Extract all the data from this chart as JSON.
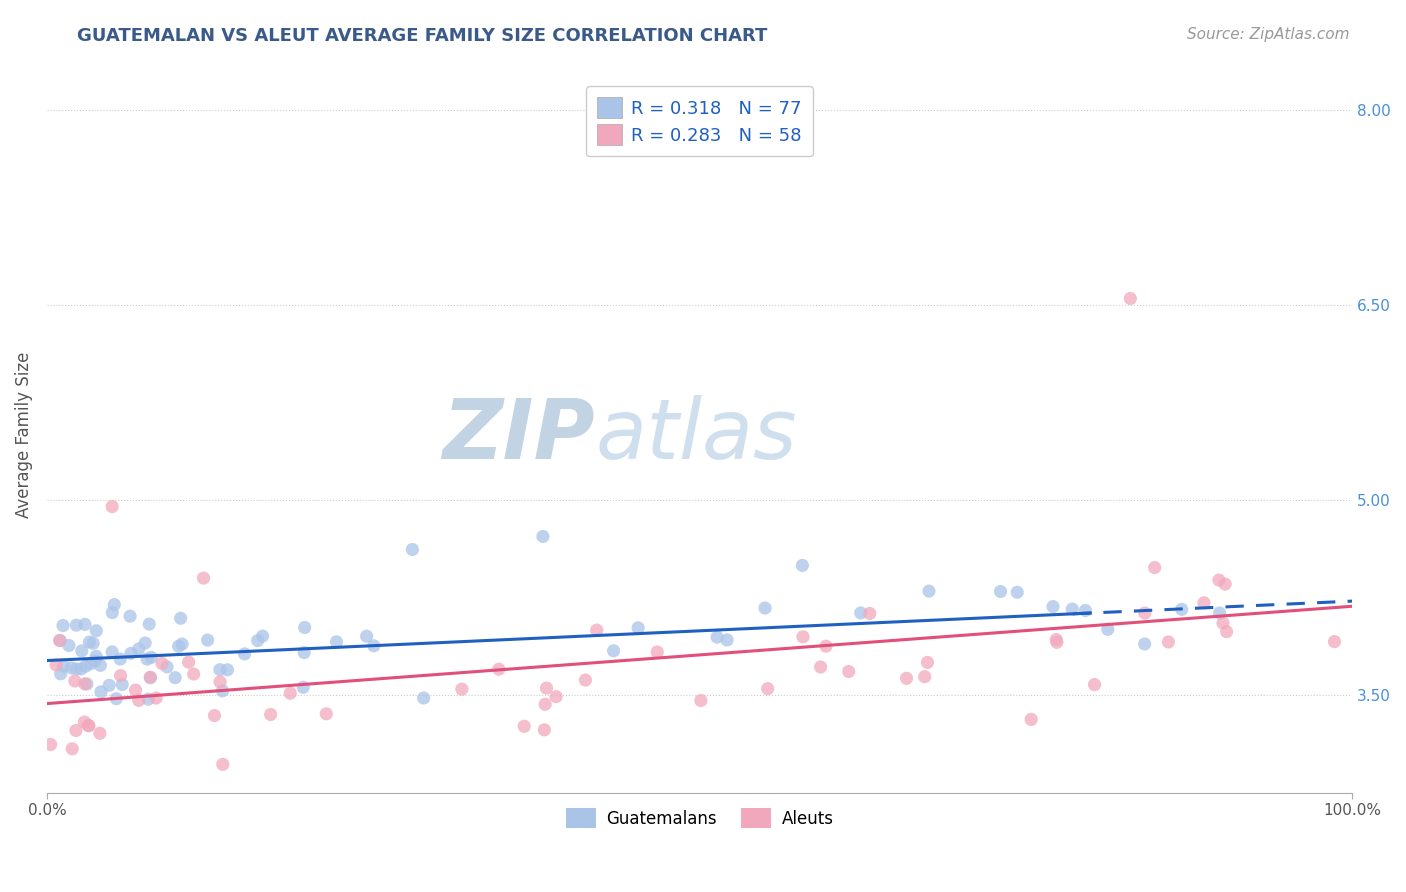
{
  "title": "GUATEMALAN VS ALEUT AVERAGE FAMILY SIZE CORRELATION CHART",
  "source": "Source: ZipAtlas.com",
  "ylabel": "Average Family Size",
  "xmin": 0.0,
  "xmax": 100.0,
  "ymin": 2.75,
  "ymax": 8.25,
  "yticks_right": [
    3.5,
    5.0,
    6.5,
    8.0
  ],
  "guatemalan_color": "#aac4e8",
  "aleut_color": "#f2a8bc",
  "guatemalan_line_color": "#2060c0",
  "aleut_line_color": "#e0507a",
  "legend_label_1": "R = 0.318   N = 77",
  "legend_label_2": "R = 0.283   N = 58",
  "legend_label_bottom_1": "Guatemalans",
  "legend_label_bottom_2": "Aleuts",
  "R_guatemalan": 0.318,
  "N_guatemalan": 77,
  "R_aleut": 0.283,
  "N_aleut": 58,
  "background_color": "#ffffff",
  "grid_color": "#cccccc",
  "watermark_text": "ZIPatlas",
  "watermark_color": "#d0dce8",
  "title_color": "#3a5a8a",
  "source_color": "#999999",
  "right_tick_color": "#4a90d9",
  "title_fontsize": 13,
  "source_fontsize": 11,
  "axis_label_fontsize": 12,
  "tick_fontsize": 11,
  "legend_fontsize": 13
}
